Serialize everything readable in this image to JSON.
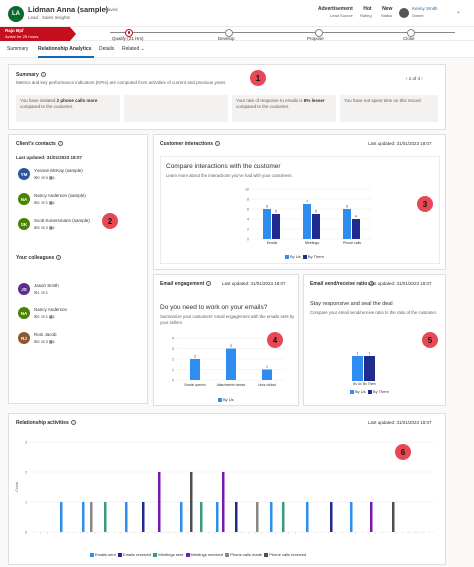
{
  "header": {
    "avatar_initials": "LA",
    "title": "Lidman Anna (sample)",
    "saved": "- Saved",
    "subtitle": "Lead · Sales Insights",
    "fields": [
      {
        "value": "Advertisement",
        "label": "Lead Source"
      },
      {
        "value": "Hot",
        "label": "Rating"
      },
      {
        "value": "New",
        "label": "Status"
      }
    ],
    "owner_name": "Kenny Smith",
    "owner_label": "Owner"
  },
  "bpf": {
    "flag_title": "Rajo Bpf",
    "flag_sub": "Active for 25 hours",
    "stages": [
      {
        "label": "Qualify  (21 Hrs)",
        "active": true
      },
      {
        "label": "Develop",
        "active": false
      },
      {
        "label": "Propose",
        "active": false
      },
      {
        "label": "Close",
        "active": false
      }
    ]
  },
  "tabs": [
    "Summary",
    "Relationship Analytics",
    "Details",
    "Related ⌄"
  ],
  "summary": {
    "title": "Summary",
    "description": "Metrics and key performance indicators (KPIs) are computed from activities of current and previous years",
    "pager": "1 of 4",
    "kpis": [
      {
        "pre": "You have initiated ",
        "bold": "2 phone calls more",
        "post": " compared to the customer."
      },
      {
        "pre": "",
        "bold": "",
        "post": ""
      },
      {
        "pre": "Your rate of response to emails is ",
        "bold": "8% lesser",
        "post": " compared to the customer."
      },
      {
        "pre": "You have not spent time on this record",
        "bold": "",
        "post": ""
      }
    ]
  },
  "contacts": {
    "title": "Client's contacts",
    "updated": "Last updated: 31/01/2023 18:07",
    "items": [
      {
        "initials": "YM",
        "name": "Yvonne McKay (sample)",
        "stats": "✉0  ☏0  ▦1",
        "color": "#2b579a"
      },
      {
        "initials": "NA",
        "name": "Nancy Anderson (sample)",
        "stats": "✉2  ☏1  ▦1",
        "color": "#498205"
      },
      {
        "initials": "SK",
        "name": "Scott Konersmann (sample)",
        "stats": "✉3  ☏2  ▦1",
        "color": "#498205"
      }
    ]
  },
  "colleagues": {
    "title": "Your colleagues",
    "items": [
      {
        "initials": "JS",
        "name": "Jason Smith",
        "stats": "✉1  ☏1",
        "color": "#5c2e91"
      },
      {
        "initials": "NA",
        "name": "Nancy Anderson",
        "stats": "✉2  ☏1  ▦1",
        "color": "#498205"
      },
      {
        "initials": "RJ",
        "name": "Roni Jacob",
        "stats": "✉2  ☏2  ▦1",
        "color": "#8e562e"
      }
    ]
  },
  "interactions": {
    "title": "Customer interactions",
    "updated": "Last updated: 31/01/2023 18:07",
    "heading": "Compare interactions with the customer",
    "desc": "Learn more about the interactions you've had with your customers.",
    "legend": [
      "By Us",
      "By Them"
    ]
  },
  "engagement": {
    "title": "Email engagement",
    "updated": "Last updated: 31/01/2023 18:07",
    "heading": "Do you need to work on your emails?",
    "desc": "Summarize your customers' email engagement with the emails sent by your sellers.",
    "legend": [
      "By Us"
    ]
  },
  "ratio": {
    "title": "Email send/receive ratio",
    "updated": "Last updated: 31/01/2023 18:07",
    "heading": "Stay responsive and seal the deal",
    "desc": "Compare your email send/receive ratio to the ratio of the customer.",
    "legend": [
      "By Us",
      "By Them"
    ]
  },
  "activities": {
    "title": "Relationship activities",
    "updated": "Last updated: 31/01/2023 18:07",
    "ylabel": "Count",
    "legend": [
      "Emails sent",
      "Emails received",
      "Meetings sent",
      "Meetings received",
      "Phone calls made",
      "Phone calls received"
    ]
  },
  "badges": [
    "1",
    "2",
    "3",
    "4",
    "5",
    "6"
  ],
  "colors": {
    "accent": "#0f6cbd",
    "by_us": "#2e8def",
    "by_them": "#1f2b8f",
    "badge": "#e74856",
    "bpf_active": "#c50f1f"
  },
  "chart_data": [
    {
      "type": "bar",
      "title": "Compare interactions with the customer",
      "categories": [
        "Emails",
        "Meetings",
        "Phone calls"
      ],
      "series": [
        {
          "name": "By Us",
          "values": [
            6,
            7,
            6
          ]
        },
        {
          "name": "By Them",
          "values": [
            5,
            5,
            4
          ]
        }
      ],
      "ylim": [
        0,
        10
      ]
    },
    {
      "type": "bar",
      "title": "Do you need to work on your emails?",
      "categories": [
        "Emails opened",
        "Attachments viewed",
        "Links clicked"
      ],
      "series": [
        {
          "name": "By Us",
          "values": [
            2,
            3,
            1
          ]
        }
      ],
      "ylim": [
        0,
        4
      ]
    },
    {
      "type": "bar",
      "title": "Stay responsive and seal the deal",
      "categories": [
        "By Us",
        "By Them"
      ],
      "series": [
        {
          "name": "Ratio",
          "values": [
            1,
            1
          ]
        }
      ]
    },
    {
      "type": "bar",
      "title": "Relationship activities",
      "ylabel": "Count",
      "ylim": [
        0,
        3
      ],
      "series": [
        {
          "name": "Emails sent",
          "values": [
            1,
            1,
            1,
            1,
            1,
            1,
            1,
            1
          ]
        },
        {
          "name": "Emails received",
          "values": [
            1,
            1,
            1
          ]
        },
        {
          "name": "Meetings sent",
          "values": [
            1,
            1,
            1
          ]
        },
        {
          "name": "Meetings received",
          "values": [
            2,
            2,
            1
          ]
        },
        {
          "name": "Phone calls made",
          "values": [
            1,
            1
          ]
        },
        {
          "name": "Phone calls received",
          "values": [
            2,
            1
          ]
        }
      ]
    }
  ]
}
